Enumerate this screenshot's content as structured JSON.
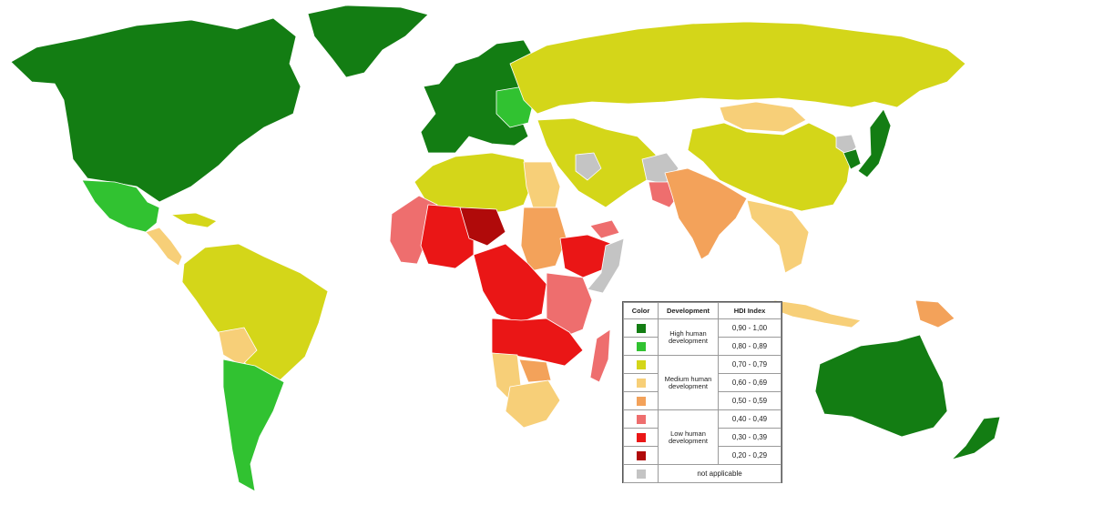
{
  "legend": {
    "headers": {
      "color": "Color",
      "development": "Development",
      "hdi": "HDI Index"
    },
    "groups": {
      "high": "High human development",
      "medium": "Medium human development",
      "low": "Low human development"
    },
    "rows": [
      {
        "range": "0,90 - 1,00",
        "color": "#137d13"
      },
      {
        "range": "0,80 - 0,89",
        "color": "#31c231"
      },
      {
        "range": "0,70 - 0,79",
        "color": "#d4d619"
      },
      {
        "range": "0,60 - 0,69",
        "color": "#f7cf78"
      },
      {
        "range": "0,50 - 0,59",
        "color": "#f3a25a"
      },
      {
        "range": "0,40 - 0,49",
        "color": "#ee6e6e"
      },
      {
        "range": "0,30 - 0,39",
        "color": "#ea1616"
      },
      {
        "range": "0,20 - 0,29",
        "color": "#b00a0a"
      }
    ],
    "na": {
      "label": "not applicable",
      "color": "#c4c4c4"
    }
  },
  "regions": [
    {
      "name": "north-america",
      "color": "#137d13"
    },
    {
      "name": "greenland",
      "color": "#137d13"
    },
    {
      "name": "mexico",
      "color": "#31c231"
    },
    {
      "name": "central-america",
      "color": "#f7cf78"
    },
    {
      "name": "caribbean",
      "color": "#d4d619"
    },
    {
      "name": "south-america-north",
      "color": "#d4d619"
    },
    {
      "name": "bolivia",
      "color": "#f7cf78"
    },
    {
      "name": "southern-cone",
      "color": "#31c231"
    },
    {
      "name": "western-europe",
      "color": "#137d13"
    },
    {
      "name": "eastern-europe",
      "color": "#31c231"
    },
    {
      "name": "russia",
      "color": "#d4d619"
    },
    {
      "name": "mongolia",
      "color": "#f7cf78"
    },
    {
      "name": "china",
      "color": "#d4d619"
    },
    {
      "name": "korea",
      "color": "#137d13"
    },
    {
      "name": "north-korea",
      "color": "#c4c4c4"
    },
    {
      "name": "japan",
      "color": "#137d13"
    },
    {
      "name": "middle-east",
      "color": "#d4d619"
    },
    {
      "name": "iraq",
      "color": "#c4c4c4"
    },
    {
      "name": "afghanistan",
      "color": "#c4c4c4"
    },
    {
      "name": "pakistan",
      "color": "#ee6e6e"
    },
    {
      "name": "yemen",
      "color": "#ee6e6e"
    },
    {
      "name": "india",
      "color": "#f3a25a"
    },
    {
      "name": "southeast-asia",
      "color": "#f7cf78"
    },
    {
      "name": "north-africa",
      "color": "#d4d619"
    },
    {
      "name": "egypt",
      "color": "#f7cf78"
    },
    {
      "name": "west-africa",
      "color": "#ee6e6e"
    },
    {
      "name": "sahel",
      "color": "#ea1616"
    },
    {
      "name": "niger-chad",
      "color": "#b00a0a"
    },
    {
      "name": "sudan",
      "color": "#f3a25a"
    },
    {
      "name": "ethiopia",
      "color": "#ea1616"
    },
    {
      "name": "somalia",
      "color": "#c4c4c4"
    },
    {
      "name": "central-africa",
      "color": "#ea1616"
    },
    {
      "name": "east-africa",
      "color": "#ee6e6e"
    },
    {
      "name": "angola-zambia",
      "color": "#ea1616"
    },
    {
      "name": "namibia",
      "color": "#f7cf78"
    },
    {
      "name": "zimbabwe",
      "color": "#f3a25a"
    },
    {
      "name": "south-africa",
      "color": "#f7cf78"
    },
    {
      "name": "madagascar",
      "color": "#ee6e6e"
    },
    {
      "name": "indonesia",
      "color": "#f7cf78"
    },
    {
      "name": "papua-new-guinea",
      "color": "#f3a25a"
    },
    {
      "name": "australia",
      "color": "#137d13"
    },
    {
      "name": "new-zealand",
      "color": "#137d13"
    }
  ]
}
